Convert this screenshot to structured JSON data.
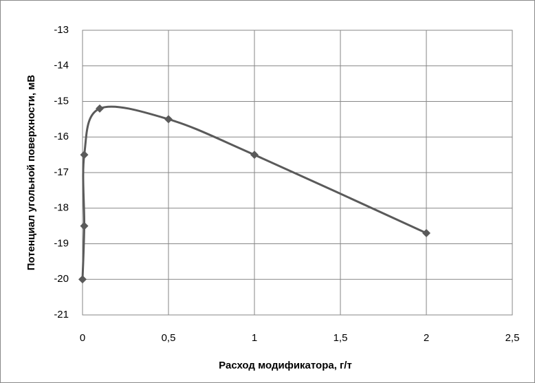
{
  "chart_data": {
    "type": "scatter",
    "x_label": "Расход модификатора, г/т",
    "y_label": "Потенциал угольной поверхности, мВ",
    "series": [
      {
        "color": "#5a5a5a",
        "x": [
          0,
          0.01,
          0.01,
          0.1,
          0.5,
          1,
          2
        ],
        "values": [
          -20,
          -18.5,
          -16.5,
          -15.2,
          -15.5,
          -16.5,
          -18.7
        ]
      }
    ],
    "smooth": true,
    "xlim": [
      0,
      2.5
    ],
    "xticks": [
      0,
      {
        "value": 0.5,
        "label": "0,5"
      },
      1,
      {
        "value": 1.5,
        "label": "1,5"
      },
      2,
      {
        "value": 2.5,
        "label": "2,5"
      }
    ],
    "ylim": [
      -21,
      -13
    ],
    "yticks": [
      -21,
      -20,
      -19,
      -18,
      -17,
      -16,
      -15,
      -14,
      -13
    ],
    "grid": true
  }
}
